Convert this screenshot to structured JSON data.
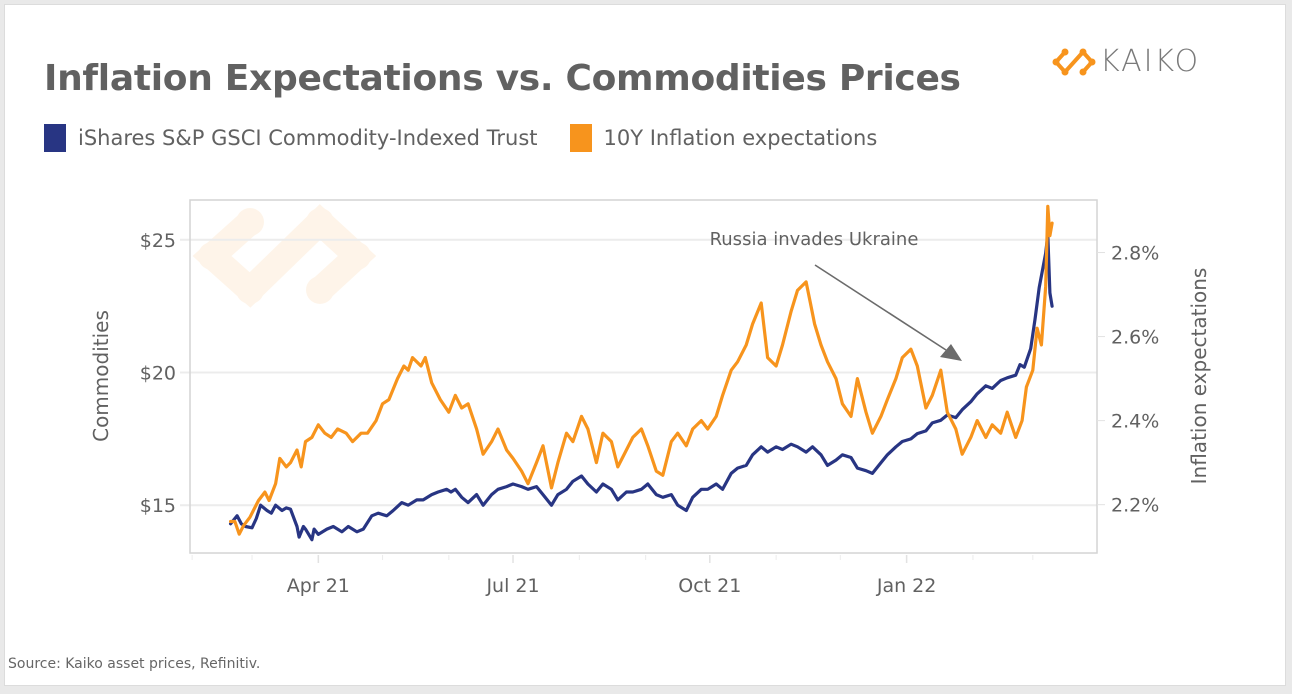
{
  "title": "Inflation Expectations vs. Commodities Prices",
  "brand": {
    "name": "KAIKO",
    "color": "#f7941d"
  },
  "source": "Source: Kaiko asset prices, Refinitiv.",
  "chart_data": {
    "type": "line",
    "title": "Inflation Expectations vs. Commodities Prices",
    "xlabel": "",
    "x_ticks": [
      {
        "date": "2021-04-01",
        "label": "Apr 21"
      },
      {
        "date": "2021-07-01",
        "label": "Jul 21"
      },
      {
        "date": "2021-10-01",
        "label": "Oct 21"
      },
      {
        "date": "2022-01-01",
        "label": "Jan 22"
      }
    ],
    "x_range": [
      "2021-01-31",
      "2022-03-31"
    ],
    "y_left": {
      "label": "Commodities",
      "ticks": [
        {
          "value": 15,
          "label": "$15"
        },
        {
          "value": 20,
          "label": "$20"
        },
        {
          "value": 25,
          "label": "$25"
        }
      ],
      "range": [
        13.2,
        26.5
      ]
    },
    "y_right": {
      "label": "Inflation expectations",
      "ticks": [
        {
          "value": 2.2,
          "label": "2.2%"
        },
        {
          "value": 2.4,
          "label": "2.4%"
        },
        {
          "value": 2.6,
          "label": "2.6%"
        },
        {
          "value": 2.8,
          "label": "2.8%"
        }
      ],
      "range": [
        2.085,
        2.925
      ]
    },
    "grid": true,
    "legend": "top-left",
    "annotation": {
      "text": "Russia invades Ukraine",
      "date": "2022-02-24"
    },
    "series": [
      {
        "name": "iShares S&P GSCI Commodity-Indexed Trust",
        "axis": "left",
        "color": "#283583",
        "points": [
          [
            "2021-02-19",
            14.3
          ],
          [
            "2021-02-22",
            14.6
          ],
          [
            "2021-02-24",
            14.3
          ],
          [
            "2021-02-26",
            14.2
          ],
          [
            "2021-03-01",
            14.15
          ],
          [
            "2021-03-03",
            14.5
          ],
          [
            "2021-03-05",
            15.0
          ],
          [
            "2021-03-08",
            14.8
          ],
          [
            "2021-03-10",
            14.7
          ],
          [
            "2021-03-12",
            15.0
          ],
          [
            "2021-03-15",
            14.8
          ],
          [
            "2021-03-17",
            14.9
          ],
          [
            "2021-03-19",
            14.85
          ],
          [
            "2021-03-22",
            14.2
          ],
          [
            "2021-03-23",
            13.8
          ],
          [
            "2021-03-25",
            14.2
          ],
          [
            "2021-03-26",
            14.1
          ],
          [
            "2021-03-29",
            13.7
          ],
          [
            "2021-03-30",
            14.1
          ],
          [
            "2021-04-01",
            13.9
          ],
          [
            "2021-04-05",
            14.1
          ],
          [
            "2021-04-08",
            14.2
          ],
          [
            "2021-04-12",
            14.0
          ],
          [
            "2021-04-15",
            14.2
          ],
          [
            "2021-04-19",
            14.0
          ],
          [
            "2021-04-22",
            14.1
          ],
          [
            "2021-04-26",
            14.6
          ],
          [
            "2021-04-29",
            14.7
          ],
          [
            "2021-05-03",
            14.6
          ],
          [
            "2021-05-06",
            14.8
          ],
          [
            "2021-05-10",
            15.1
          ],
          [
            "2021-05-13",
            15.0
          ],
          [
            "2021-05-17",
            15.2
          ],
          [
            "2021-05-20",
            15.2
          ],
          [
            "2021-05-24",
            15.4
          ],
          [
            "2021-05-27",
            15.5
          ],
          [
            "2021-05-31",
            15.6
          ],
          [
            "2021-06-02",
            15.5
          ],
          [
            "2021-06-04",
            15.6
          ],
          [
            "2021-06-07",
            15.3
          ],
          [
            "2021-06-10",
            15.1
          ],
          [
            "2021-06-14",
            15.4
          ],
          [
            "2021-06-17",
            15.0
          ],
          [
            "2021-06-21",
            15.4
          ],
          [
            "2021-06-24",
            15.6
          ],
          [
            "2021-06-28",
            15.7
          ],
          [
            "2021-07-01",
            15.8
          ],
          [
            "2021-07-05",
            15.7
          ],
          [
            "2021-07-08",
            15.6
          ],
          [
            "2021-07-12",
            15.7
          ],
          [
            "2021-07-15",
            15.4
          ],
          [
            "2021-07-19",
            15.0
          ],
          [
            "2021-07-22",
            15.4
          ],
          [
            "2021-07-26",
            15.6
          ],
          [
            "2021-07-29",
            15.9
          ],
          [
            "2021-08-02",
            16.1
          ],
          [
            "2021-08-05",
            15.8
          ],
          [
            "2021-08-09",
            15.5
          ],
          [
            "2021-08-12",
            15.8
          ],
          [
            "2021-08-16",
            15.6
          ],
          [
            "2021-08-19",
            15.2
          ],
          [
            "2021-08-23",
            15.5
          ],
          [
            "2021-08-26",
            15.5
          ],
          [
            "2021-08-30",
            15.6
          ],
          [
            "2021-09-02",
            15.8
          ],
          [
            "2021-09-06",
            15.4
          ],
          [
            "2021-09-09",
            15.3
          ],
          [
            "2021-09-13",
            15.4
          ],
          [
            "2021-09-16",
            15.0
          ],
          [
            "2021-09-20",
            14.8
          ],
          [
            "2021-09-23",
            15.3
          ],
          [
            "2021-09-27",
            15.6
          ],
          [
            "2021-09-30",
            15.6
          ],
          [
            "2021-10-04",
            15.8
          ],
          [
            "2021-10-07",
            15.6
          ],
          [
            "2021-10-11",
            16.2
          ],
          [
            "2021-10-14",
            16.4
          ],
          [
            "2021-10-18",
            16.5
          ],
          [
            "2021-10-21",
            16.9
          ],
          [
            "2021-10-25",
            17.2
          ],
          [
            "2021-10-28",
            17.0
          ],
          [
            "2021-11-01",
            17.2
          ],
          [
            "2021-11-04",
            17.1
          ],
          [
            "2021-11-08",
            17.3
          ],
          [
            "2021-11-11",
            17.2
          ],
          [
            "2021-11-15",
            17.0
          ],
          [
            "2021-11-18",
            17.2
          ],
          [
            "2021-11-22",
            16.9
          ],
          [
            "2021-11-25",
            16.5
          ],
          [
            "2021-11-29",
            16.7
          ],
          [
            "2021-12-02",
            16.9
          ],
          [
            "2021-12-06",
            16.8
          ],
          [
            "2021-12-09",
            16.4
          ],
          [
            "2021-12-13",
            16.3
          ],
          [
            "2021-12-16",
            16.2
          ],
          [
            "2021-12-20",
            16.6
          ],
          [
            "2021-12-23",
            16.9
          ],
          [
            "2021-12-27",
            17.2
          ],
          [
            "2021-12-30",
            17.4
          ],
          [
            "2022-01-03",
            17.5
          ],
          [
            "2022-01-06",
            17.7
          ],
          [
            "2022-01-10",
            17.8
          ],
          [
            "2022-01-13",
            18.1
          ],
          [
            "2022-01-17",
            18.2
          ],
          [
            "2022-01-20",
            18.4
          ],
          [
            "2022-01-24",
            18.3
          ],
          [
            "2022-01-27",
            18.6
          ],
          [
            "2022-01-31",
            18.9
          ],
          [
            "2022-02-03",
            19.2
          ],
          [
            "2022-02-07",
            19.5
          ],
          [
            "2022-02-10",
            19.4
          ],
          [
            "2022-02-14",
            19.7
          ],
          [
            "2022-02-17",
            19.8
          ],
          [
            "2022-02-21",
            19.9
          ],
          [
            "2022-02-23",
            20.3
          ],
          [
            "2022-02-25",
            20.2
          ],
          [
            "2022-02-28",
            20.9
          ],
          [
            "2022-03-02",
            22.0
          ],
          [
            "2022-03-04",
            23.2
          ],
          [
            "2022-03-07",
            24.5
          ],
          [
            "2022-03-08",
            25.2
          ],
          [
            "2022-03-09",
            23.0
          ],
          [
            "2022-03-10",
            22.5
          ]
        ]
      },
      {
        "name": "10Y Inflation expectations",
        "axis": "right",
        "color": "#f7941d",
        "points": [
          [
            "2021-02-19",
            2.16
          ],
          [
            "2021-02-21",
            2.16
          ],
          [
            "2021-02-23",
            2.13
          ],
          [
            "2021-02-25",
            2.15
          ],
          [
            "2021-02-28",
            2.17
          ],
          [
            "2021-03-02",
            2.19
          ],
          [
            "2021-03-04",
            2.21
          ],
          [
            "2021-03-07",
            2.23
          ],
          [
            "2021-03-09",
            2.21
          ],
          [
            "2021-03-12",
            2.25
          ],
          [
            "2021-03-14",
            2.31
          ],
          [
            "2021-03-17",
            2.29
          ],
          [
            "2021-03-19",
            2.3
          ],
          [
            "2021-03-22",
            2.33
          ],
          [
            "2021-03-24",
            2.29
          ],
          [
            "2021-03-26",
            2.35
          ],
          [
            "2021-03-29",
            2.36
          ],
          [
            "2021-04-01",
            2.39
          ],
          [
            "2021-04-04",
            2.37
          ],
          [
            "2021-04-07",
            2.36
          ],
          [
            "2021-04-10",
            2.38
          ],
          [
            "2021-04-14",
            2.37
          ],
          [
            "2021-04-17",
            2.35
          ],
          [
            "2021-04-21",
            2.37
          ],
          [
            "2021-04-24",
            2.37
          ],
          [
            "2021-04-28",
            2.4
          ],
          [
            "2021-05-01",
            2.44
          ],
          [
            "2021-05-04",
            2.45
          ],
          [
            "2021-05-08",
            2.5
          ],
          [
            "2021-05-11",
            2.53
          ],
          [
            "2021-05-13",
            2.52
          ],
          [
            "2021-05-15",
            2.55
          ],
          [
            "2021-05-19",
            2.53
          ],
          [
            "2021-05-21",
            2.55
          ],
          [
            "2021-05-24",
            2.49
          ],
          [
            "2021-05-28",
            2.45
          ],
          [
            "2021-06-01",
            2.42
          ],
          [
            "2021-06-04",
            2.46
          ],
          [
            "2021-06-07",
            2.43
          ],
          [
            "2021-06-10",
            2.44
          ],
          [
            "2021-06-14",
            2.38
          ],
          [
            "2021-06-17",
            2.32
          ],
          [
            "2021-06-21",
            2.35
          ],
          [
            "2021-06-24",
            2.38
          ],
          [
            "2021-06-28",
            2.33
          ],
          [
            "2021-07-01",
            2.31
          ],
          [
            "2021-07-05",
            2.28
          ],
          [
            "2021-07-08",
            2.25
          ],
          [
            "2021-07-12",
            2.3
          ],
          [
            "2021-07-15",
            2.34
          ],
          [
            "2021-07-19",
            2.24
          ],
          [
            "2021-07-22",
            2.3
          ],
          [
            "2021-07-26",
            2.37
          ],
          [
            "2021-07-29",
            2.35
          ],
          [
            "2021-08-02",
            2.41
          ],
          [
            "2021-08-05",
            2.38
          ],
          [
            "2021-08-09",
            2.3
          ],
          [
            "2021-08-12",
            2.37
          ],
          [
            "2021-08-16",
            2.35
          ],
          [
            "2021-08-19",
            2.29
          ],
          [
            "2021-08-23",
            2.33
          ],
          [
            "2021-08-26",
            2.36
          ],
          [
            "2021-08-30",
            2.38
          ],
          [
            "2021-09-02",
            2.34
          ],
          [
            "2021-09-06",
            2.28
          ],
          [
            "2021-09-09",
            2.27
          ],
          [
            "2021-09-13",
            2.35
          ],
          [
            "2021-09-16",
            2.37
          ],
          [
            "2021-09-20",
            2.34
          ],
          [
            "2021-09-23",
            2.38
          ],
          [
            "2021-09-27",
            2.4
          ],
          [
            "2021-09-30",
            2.38
          ],
          [
            "2021-10-04",
            2.41
          ],
          [
            "2021-10-07",
            2.46
          ],
          [
            "2021-10-11",
            2.52
          ],
          [
            "2021-10-14",
            2.54
          ],
          [
            "2021-10-18",
            2.58
          ],
          [
            "2021-10-21",
            2.63
          ],
          [
            "2021-10-25",
            2.68
          ],
          [
            "2021-10-28",
            2.55
          ],
          [
            "2021-11-01",
            2.53
          ],
          [
            "2021-11-04",
            2.58
          ],
          [
            "2021-11-08",
            2.66
          ],
          [
            "2021-11-11",
            2.71
          ],
          [
            "2021-11-15",
            2.73
          ],
          [
            "2021-11-17",
            2.68
          ],
          [
            "2021-11-19",
            2.63
          ],
          [
            "2021-11-22",
            2.58
          ],
          [
            "2021-11-25",
            2.54
          ],
          [
            "2021-11-29",
            2.5
          ],
          [
            "2021-12-02",
            2.44
          ],
          [
            "2021-12-06",
            2.41
          ],
          [
            "2021-12-09",
            2.5
          ],
          [
            "2021-12-13",
            2.42
          ],
          [
            "2021-12-16",
            2.37
          ],
          [
            "2021-12-20",
            2.41
          ],
          [
            "2021-12-23",
            2.45
          ],
          [
            "2021-12-27",
            2.5
          ],
          [
            "2021-12-30",
            2.55
          ],
          [
            "2022-01-03",
            2.57
          ],
          [
            "2022-01-06",
            2.53
          ],
          [
            "2022-01-10",
            2.43
          ],
          [
            "2022-01-13",
            2.46
          ],
          [
            "2022-01-17",
            2.52
          ],
          [
            "2022-01-20",
            2.42
          ],
          [
            "2022-01-24",
            2.38
          ],
          [
            "2022-01-27",
            2.32
          ],
          [
            "2022-01-31",
            2.36
          ],
          [
            "2022-02-03",
            2.4
          ],
          [
            "2022-02-07",
            2.36
          ],
          [
            "2022-02-10",
            2.39
          ],
          [
            "2022-02-14",
            2.37
          ],
          [
            "2022-02-17",
            2.42
          ],
          [
            "2022-02-21",
            2.36
          ],
          [
            "2022-02-24",
            2.4
          ],
          [
            "2022-02-26",
            2.48
          ],
          [
            "2022-03-01",
            2.52
          ],
          [
            "2022-03-03",
            2.62
          ],
          [
            "2022-03-05",
            2.58
          ],
          [
            "2022-03-07",
            2.72
          ],
          [
            "2022-03-08",
            2.91
          ],
          [
            "2022-03-09",
            2.84
          ],
          [
            "2022-03-10",
            2.87
          ]
        ]
      }
    ]
  }
}
